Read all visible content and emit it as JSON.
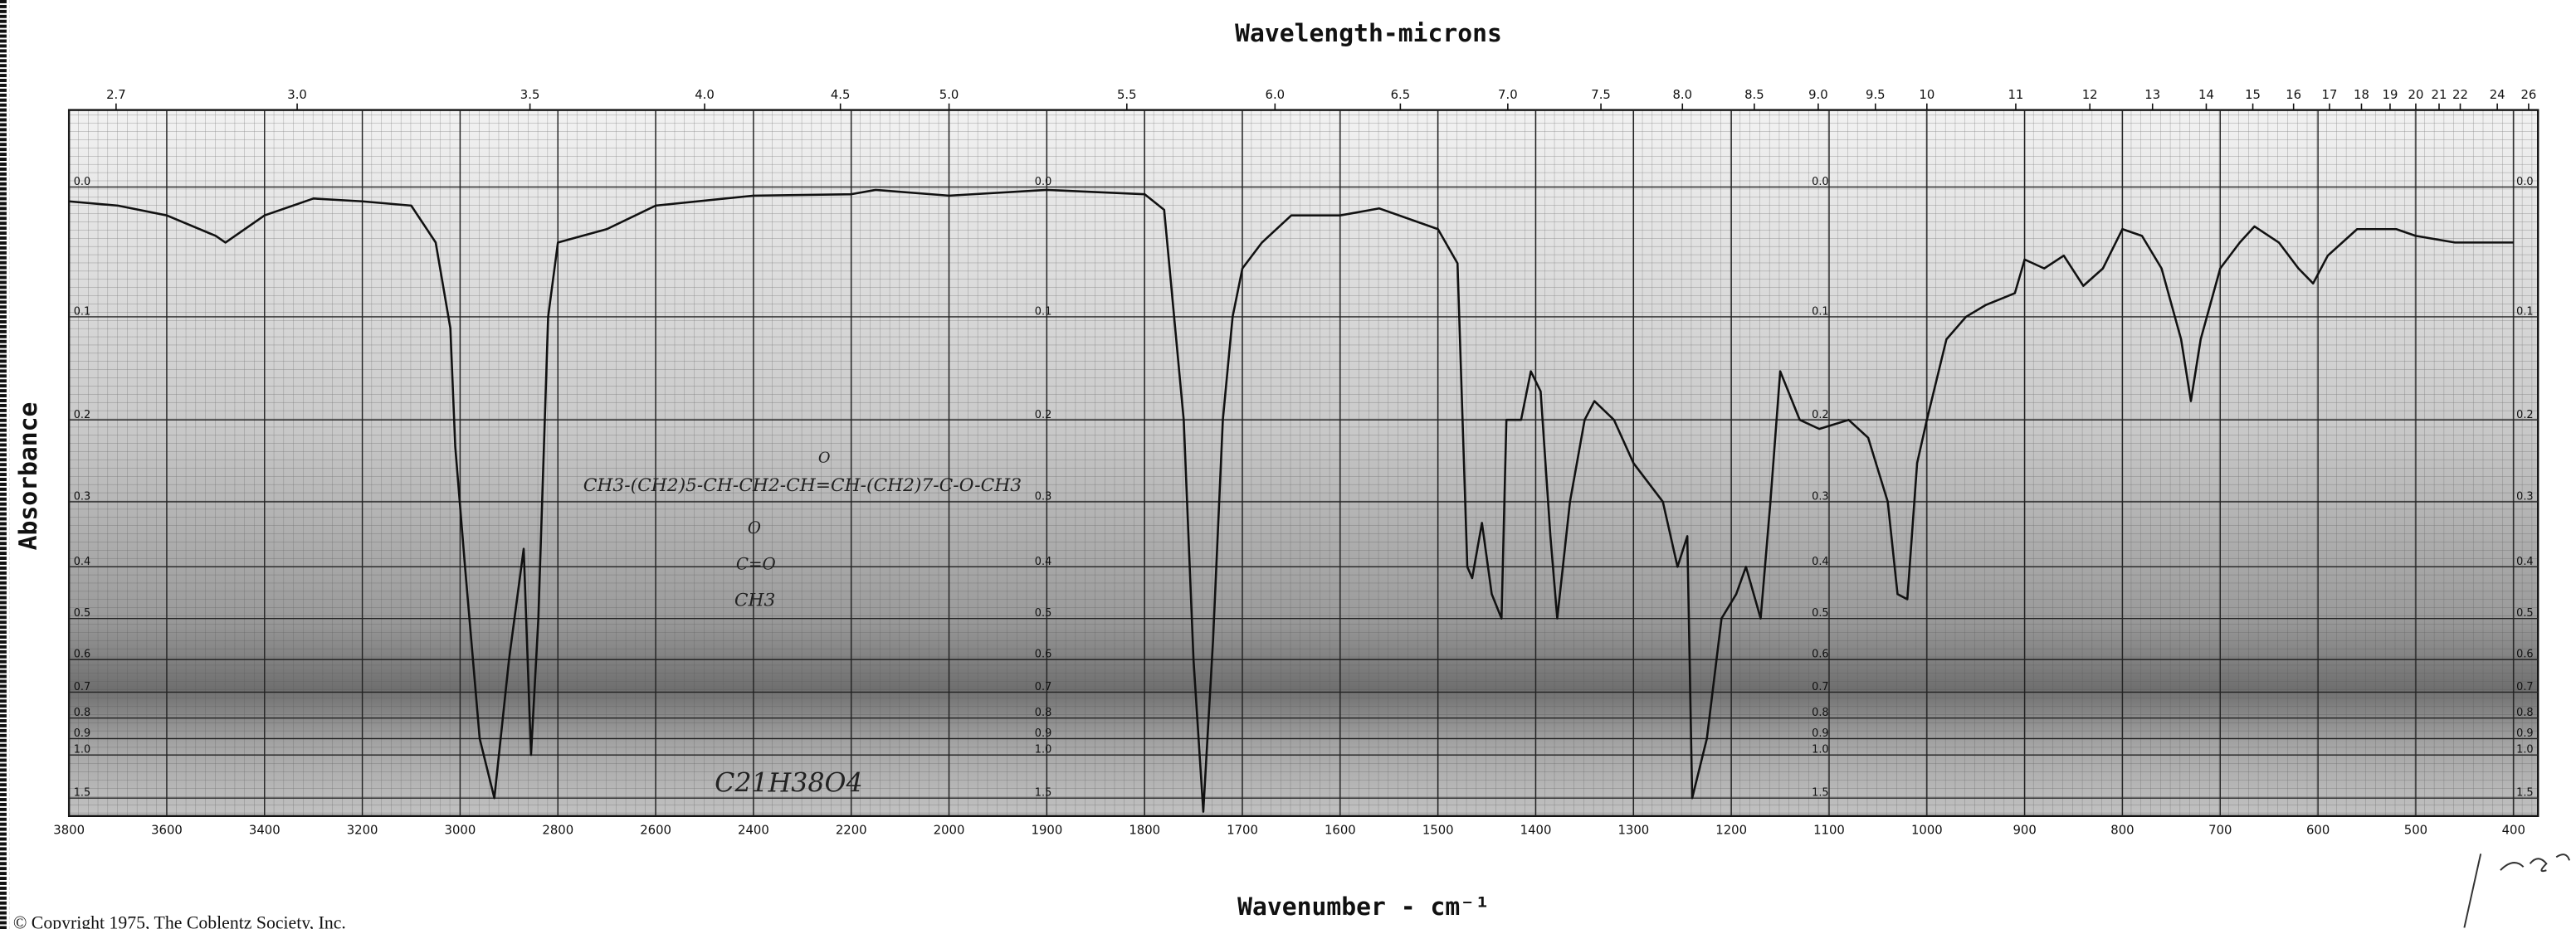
{
  "chart_data": {
    "type": "line",
    "title": "Wavelength-microns",
    "x_label": "Wavenumber - cm⁻¹",
    "y_label": "Absorbance",
    "copyright": "© Copyright 1975, The Coblentz Society, Inc.",
    "annotations": [
      "CH3-(CH2)5-CH-CH2-CH=CH-(CH2)7-C-O-CH3",
      "O",
      "C=O",
      "CH3",
      "O",
      "C21H38O4"
    ],
    "color": "#111111",
    "grid": true,
    "yscale": "absorbance",
    "xlim": [
      3800,
      375
    ],
    "ylim": [
      -0.05,
      2.5
    ],
    "xticks": [
      3800,
      3600,
      3400,
      3200,
      3000,
      2800,
      2600,
      2400,
      2200,
      2000,
      1900,
      1800,
      1700,
      1600,
      1500,
      1400,
      1300,
      1200,
      1100,
      1000,
      900,
      800,
      700,
      600,
      500,
      400
    ],
    "x2ticks": [
      2.7,
      {
        "value": 3,
        "label": "3.0"
      },
      3.5,
      {
        "value": 4,
        "label": "4.0"
      },
      4.5,
      {
        "value": 5,
        "label": "5.0"
      },
      5.5,
      {
        "value": 6,
        "label": "6.0"
      },
      6.5,
      {
        "value": 7,
        "label": "7.0"
      },
      7.5,
      {
        "value": 8,
        "label": "8.0"
      },
      8.5,
      {
        "value": 9,
        "label": "9.0"
      },
      9.5,
      10,
      11,
      12,
      13,
      14,
      15,
      16,
      17,
      18,
      19,
      20,
      21,
      22,
      24,
      26
    ],
    "yticks": [
      {
        "value": 0,
        "label": "0.0"
      },
      0.1,
      0.2,
      0.3,
      0.4,
      0.5,
      0.6,
      0.7,
      0.8,
      0.9,
      {
        "value": 1,
        "label": "1.0"
      },
      1.5
    ],
    "x": [
      3800,
      3700,
      3600,
      3500,
      3480,
      3400,
      3300,
      3200,
      3100,
      3050,
      3020,
      3010,
      2990,
      2960,
      2930,
      2900,
      2870,
      2855,
      2840,
      2820,
      2800,
      2700,
      2600,
      2400,
      2200,
      2150,
      2000,
      1900,
      1800,
      1780,
      1760,
      1750,
      1740,
      1730,
      1720,
      1710,
      1700,
      1680,
      1650,
      1600,
      1560,
      1500,
      1480,
      1470,
      1465,
      1455,
      1445,
      1435,
      1430,
      1415,
      1405,
      1395,
      1385,
      1378,
      1365,
      1350,
      1340,
      1320,
      1300,
      1270,
      1255,
      1245,
      1240,
      1225,
      1210,
      1195,
      1185,
      1170,
      1160,
      1150,
      1130,
      1110,
      1080,
      1060,
      1040,
      1030,
      1020,
      1010,
      1000,
      980,
      960,
      940,
      910,
      900,
      880,
      860,
      840,
      820,
      800,
      780,
      760,
      740,
      730,
      720,
      700,
      680,
      665,
      640,
      620,
      605,
      590,
      560,
      520,
      500,
      460,
      420,
      400
    ],
    "values": [
      0.01,
      0.013,
      0.02,
      0.035,
      0.04,
      0.02,
      0.008,
      0.01,
      0.013,
      0.04,
      0.11,
      0.23,
      0.4,
      0.9,
      1.5,
      0.6,
      0.37,
      1.0,
      0.5,
      0.1,
      0.04,
      0.03,
      0.013,
      0.006,
      0.005,
      0.002,
      0.006,
      0.002,
      0.005,
      0.016,
      0.2,
      0.6,
      2.0,
      0.55,
      0.2,
      0.1,
      0.06,
      0.04,
      0.02,
      0.02,
      0.015,
      0.03,
      0.056,
      0.4,
      0.42,
      0.33,
      0.45,
      0.5,
      0.2,
      0.2,
      0.15,
      0.17,
      0.35,
      0.5,
      0.3,
      0.2,
      0.18,
      0.2,
      0.25,
      0.3,
      0.4,
      0.35,
      1.5,
      0.9,
      0.5,
      0.45,
      0.4,
      0.5,
      0.3,
      0.15,
      0.2,
      0.21,
      0.2,
      0.22,
      0.3,
      0.45,
      0.46,
      0.25,
      0.2,
      0.12,
      0.1,
      0.09,
      0.08,
      0.053,
      0.06,
      0.05,
      0.074,
      0.06,
      0.03,
      0.035,
      0.06,
      0.12,
      0.18,
      0.12,
      0.06,
      0.04,
      0.028,
      0.04,
      0.06,
      0.072,
      0.05,
      0.03,
      0.03,
      0.035,
      0.04,
      0.04,
      0.04
    ]
  }
}
